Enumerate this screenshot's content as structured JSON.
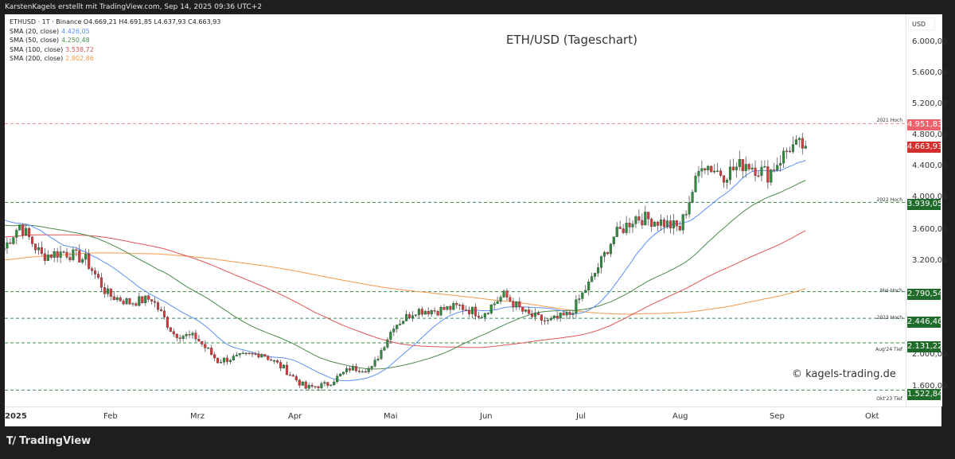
{
  "header": {
    "credit": "KarstenKagels erstellt mit TradingView.com, Sep 14, 2025 09:36 UTC+2"
  },
  "legend": {
    "symbol_line": "ETHUSD · 1T · Binance  O4.669,21  H4.691,85  L4.637,93  C4.663,93",
    "sma": [
      {
        "label": "SMA (20, close)",
        "value": "4.426,05",
        "color": "#5b8ff9"
      },
      {
        "label": "SMA (50, close)",
        "value": "4.250,48",
        "color": "#4a8a4a"
      },
      {
        "label": "SMA (100, close)",
        "value": "3.538,72",
        "color": "#e05555"
      },
      {
        "label": "SMA (200, close)",
        "value": "2.802,86",
        "color": "#f59a4a"
      }
    ]
  },
  "title": "ETH/USD (Tageschart)",
  "watermark": "© kagels-trading.de",
  "y_axis": {
    "unit": "USD",
    "ticks": [
      "6.000,00",
      "5.600,00",
      "5.200,00",
      "4.800,00",
      "4.400,00",
      "4.000,00",
      "3.600,00",
      "3.200,00",
      "2.000,00",
      "1.600,00"
    ]
  },
  "levels": [
    {
      "name": "2021 Hoch",
      "value": "4.951,83",
      "price": 4951.83,
      "color": "#f0606a",
      "dash": "#f08c8c"
    },
    {
      "name": "2022 Hoch",
      "value": "3.939,05",
      "price": 3939.05,
      "color": "#1e6b2a",
      "dash": "#3a8a4a"
    },
    {
      "name": "Mai-Hoch",
      "value": "2.790,54",
      "price": 2790.54,
      "color": "#1e6b2a",
      "dash": "#3a8a4a"
    },
    {
      "name": "2023 Hoch",
      "value": "2.446,46",
      "price": 2446.46,
      "color": "#1e6b2a",
      "dash": "#3a8a4a"
    },
    {
      "name": "Aug'24 Tief",
      "value": "2.131,22",
      "price": 2131.22,
      "color": "#1e6b2a",
      "dash": "#3a8a4a"
    },
    {
      "name": "Okt'23 Tief",
      "value": "1.522,84",
      "price": 1522.84,
      "color": "#1e6b2a",
      "dash": "#3a8a4a"
    }
  ],
  "current_price": {
    "value": "4.663,93",
    "price": 4663.93,
    "color": "#d32f2f"
  },
  "x_axis": {
    "ticks": [
      "2025",
      "Feb",
      "Mrz",
      "Apr",
      "Mai",
      "Jun",
      "Jul",
      "Aug",
      "Sep",
      "Okt"
    ]
  },
  "footer": {
    "brand": "TradingView"
  },
  "chart_data": {
    "type": "candlestick",
    "title": "ETH/USD (Tageschart)",
    "symbol": "ETHUSD",
    "interval": "1T",
    "exchange": "Binance",
    "xlabel": "",
    "ylabel": "USD",
    "ylim": [
      1450,
      6150
    ],
    "x_ticks": [
      "2025",
      "Feb",
      "Mrz",
      "Apr",
      "Mai",
      "Jun",
      "Jul",
      "Aug",
      "Sep",
      "Okt"
    ],
    "last_ohlc": {
      "open": 4669.21,
      "high": 4691.85,
      "low": 4637.93,
      "close": 4663.93
    },
    "indicators": [
      {
        "name": "SMA 20",
        "last": 4426.05
      },
      {
        "name": "SMA 50",
        "last": 4250.48
      },
      {
        "name": "SMA 100",
        "last": 3538.72
      },
      {
        "name": "SMA 200",
        "last": 2802.86
      }
    ],
    "horizontal_levels": [
      {
        "label": "2021 Hoch",
        "value": 4951.83
      },
      {
        "label": "2022 Hoch",
        "value": 3939.05
      },
      {
        "label": "Mai-Hoch",
        "value": 2790.54
      },
      {
        "label": "2023 Hoch",
        "value": 2446.46
      },
      {
        "label": "Aug'24 Tief",
        "value": 2131.22
      },
      {
        "label": "Okt'23 Tief",
        "value": 1522.84
      }
    ],
    "approx_closes_weekly": [
      {
        "date": "2025-01-01",
        "close": 3350
      },
      {
        "date": "2025-01-06",
        "close": 3650
      },
      {
        "date": "2025-01-13",
        "close": 3250
      },
      {
        "date": "2025-01-20",
        "close": 3300
      },
      {
        "date": "2025-01-27",
        "close": 3200
      },
      {
        "date": "2025-02-03",
        "close": 2750
      },
      {
        "date": "2025-02-10",
        "close": 2650
      },
      {
        "date": "2025-02-17",
        "close": 2700
      },
      {
        "date": "2025-02-24",
        "close": 2250
      },
      {
        "date": "2025-03-03",
        "close": 2200
      },
      {
        "date": "2025-03-10",
        "close": 1900
      },
      {
        "date": "2025-03-17",
        "close": 1950
      },
      {
        "date": "2025-03-24",
        "close": 2000
      },
      {
        "date": "2025-03-31",
        "close": 1800
      },
      {
        "date": "2025-04-07",
        "close": 1550
      },
      {
        "date": "2025-04-14",
        "close": 1600
      },
      {
        "date": "2025-04-21",
        "close": 1800
      },
      {
        "date": "2025-04-28",
        "close": 1800
      },
      {
        "date": "2025-05-05",
        "close": 2350
      },
      {
        "date": "2025-05-12",
        "close": 2550
      },
      {
        "date": "2025-05-19",
        "close": 2550
      },
      {
        "date": "2025-05-26",
        "close": 2600
      },
      {
        "date": "2025-06-02",
        "close": 2500
      },
      {
        "date": "2025-06-09",
        "close": 2750
      },
      {
        "date": "2025-06-16",
        "close": 2500
      },
      {
        "date": "2025-06-23",
        "close": 2400
      },
      {
        "date": "2025-06-30",
        "close": 2500
      },
      {
        "date": "2025-07-07",
        "close": 2950
      },
      {
        "date": "2025-07-14",
        "close": 3500
      },
      {
        "date": "2025-07-21",
        "close": 3750
      },
      {
        "date": "2025-07-28",
        "close": 3700
      },
      {
        "date": "2025-08-04",
        "close": 3600
      },
      {
        "date": "2025-08-11",
        "close": 4450
      },
      {
        "date": "2025-08-18",
        "close": 4300
      },
      {
        "date": "2025-08-25",
        "close": 4450
      },
      {
        "date": "2025-09-01",
        "close": 4300
      },
      {
        "date": "2025-09-08",
        "close": 4650
      },
      {
        "date": "2025-09-13",
        "close": 4663.93
      }
    ]
  }
}
